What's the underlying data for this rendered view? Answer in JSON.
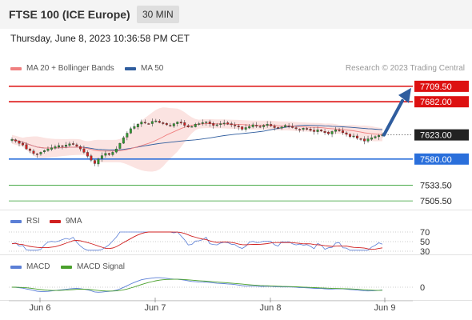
{
  "header": {
    "title": "FTSE 100 (ICE Europe)",
    "timeframe": "30 MIN"
  },
  "datetime": "Thursday, June 8, 2023 10:36:58 PM CET",
  "legend": {
    "ma20_label": "MA 20 + Bollinger Bands",
    "ma50_label": "MA 50",
    "ma20_color": "#f08080",
    "ma50_color": "#2f5d9e"
  },
  "credit": "Research © 2023 Trading Central",
  "rsi_legend": {
    "rsi_label": "RSI",
    "ma_label": "9MA",
    "rsi_color": "#5b7fd6",
    "ma_color": "#d02020"
  },
  "macd_legend": {
    "macd_label": "MACD",
    "signal_label": "MACD Signal",
    "macd_color": "#5b7fd6",
    "signal_color": "#4aa02c"
  },
  "chart_data": [
    {
      "type": "candlestick",
      "title": "FTSE 100 (ICE Europe)",
      "x_ticks": [
        "Jun 6",
        "Jun 7",
        "Jun 8",
        "Jun 9"
      ],
      "current_price": {
        "label": "7623.00",
        "value": 7623
      },
      "price_levels": [
        {
          "label": "7709.50",
          "value": 7709.5,
          "kind": "resistance",
          "color": "#dd1111"
        },
        {
          "label": "7682.00",
          "value": 7682,
          "kind": "resistance",
          "color": "#dd1111"
        },
        {
          "label": "7580.00",
          "value": 7580,
          "kind": "pivot",
          "color": "#2a6fdb"
        },
        {
          "label": "7533.50",
          "value": 7533.5,
          "kind": "support",
          "color": "#2e9e2e"
        },
        {
          "label": "7505.50",
          "value": 7505.5,
          "kind": "support",
          "color": "#2e9e2e"
        }
      ],
      "ylim": [
        7490,
        7725
      ],
      "close": [
        7615,
        7612,
        7608,
        7605,
        7598,
        7595,
        7590,
        7588,
        7592,
        7595,
        7598,
        7600,
        7602,
        7604,
        7603,
        7605,
        7607,
        7606,
        7603,
        7598,
        7592,
        7585,
        7578,
        7572,
        7580,
        7586,
        7590,
        7588,
        7592,
        7598,
        7608,
        7618,
        7626,
        7634,
        7638,
        7642,
        7646,
        7644,
        7643,
        7647,
        7648,
        7645,
        7643,
        7641,
        7639,
        7643,
        7646,
        7644,
        7640,
        7637,
        7638,
        7642,
        7643,
        7645,
        7646,
        7643,
        7640,
        7641,
        7643,
        7644,
        7642,
        7641,
        7639,
        7637,
        7633,
        7636,
        7638,
        7641,
        7639,
        7637,
        7640,
        7642,
        7639,
        7636,
        7635,
        7637,
        7640,
        7638,
        7636,
        7634,
        7632,
        7635,
        7633,
        7631,
        7629,
        7632,
        7630,
        7627,
        7625,
        7629,
        7632,
        7630,
        7627,
        7624,
        7620,
        7621,
        7617,
        7615,
        7612,
        7616,
        7618,
        7620,
        7622,
        7623
      ]
    },
    {
      "type": "line",
      "title": "RSI",
      "levels": [
        70,
        50,
        30
      ],
      "ylim": [
        0,
        100
      ]
    },
    {
      "type": "line",
      "title": "MACD",
      "levels": [
        0
      ]
    }
  ]
}
